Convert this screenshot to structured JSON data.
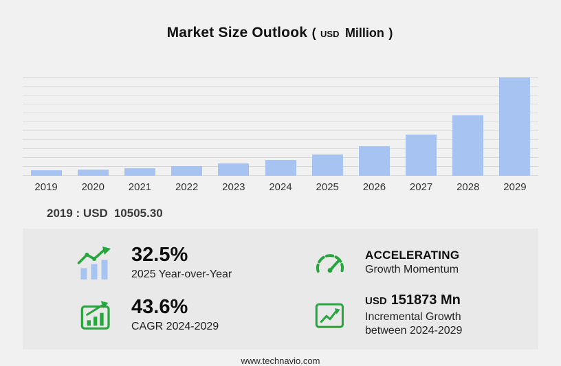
{
  "title": {
    "main": "Market Size Outlook",
    "open_paren": "(",
    "unit_small": "USD",
    "unit_large": "Million",
    "close_paren": ")"
  },
  "chart_data": {
    "type": "bar",
    "title": "Market Size Outlook (USD Million)",
    "categories": [
      "2019",
      "2020",
      "2021",
      "2022",
      "2023",
      "2024",
      "2025",
      "2026",
      "2027",
      "2028",
      "2029"
    ],
    "values": [
      10505.3,
      11800,
      14200,
      17800,
      22600,
      29744,
      39411,
      54100,
      76600,
      111500,
      181617
    ],
    "xlabel": "",
    "ylabel": "USD Million",
    "ylim": [
      0,
      183000
    ],
    "grid": "horizontal",
    "legend": "none",
    "bar_color": "#a6c3f2"
  },
  "annotation": {
    "label": "2019 : USD",
    "value": "10505.30"
  },
  "stats": {
    "yoy": {
      "value": "32.5%",
      "label": "2025 Year-over-Year",
      "icon": "yoy-bars-icon"
    },
    "momentum": {
      "value": "ACCELERATING",
      "label": "Growth Momentum",
      "icon": "speedometer-icon"
    },
    "cagr": {
      "value": "43.6%",
      "label": "CAGR 2024-2029",
      "icon": "cagr-box-icon"
    },
    "incremental": {
      "prefix": "USD",
      "value": "151873 Mn",
      "label_line1": "Incremental Growth",
      "label_line2": "between 2024-2029",
      "icon": "incremental-growth-icon"
    }
  },
  "footer": {
    "url": "www.technavio.com"
  },
  "colors": {
    "bar_fill": "#a6c3f2",
    "icon_green": "#26a63d",
    "page_bg": "#f1f1f2",
    "panel_bg": "#e9e9ea"
  }
}
